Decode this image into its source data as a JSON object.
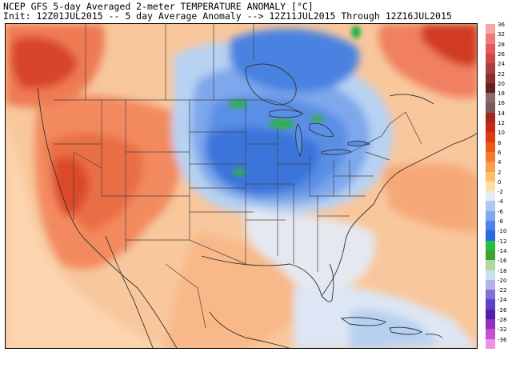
{
  "header": {
    "line1": "NCEP GFS 5-day Averaged 2-meter TEMPERATURE ANOMALY [°C]",
    "line2": "Init: 12Z01JUL2015 -- 5 day Average Anomaly --> 12Z11JUL2015 Through 12Z16JUL2015"
  },
  "colorbar": {
    "levels": [
      "36",
      "32",
      "28",
      "26",
      "24",
      "22",
      "20",
      "18",
      "16",
      "14",
      "12",
      "10",
      "8",
      "6",
      "4",
      "2",
      "0",
      "-2",
      "-4",
      "-6",
      "-8",
      "-10",
      "-12",
      "-14",
      "-16",
      "-18",
      "-20",
      "-22",
      "-24",
      "-26",
      "-28",
      "-32",
      "-36"
    ],
    "colors": [
      "#f7a6a6",
      "#f07a7a",
      "#e85a5a",
      "#cc4a4a",
      "#a84040",
      "#8a3030",
      "#6a2020",
      "#8a6a6a",
      "#7a5a5a",
      "#a0261e",
      "#c42a14",
      "#e03a10",
      "#f05a18",
      "#f47a30",
      "#f8a050",
      "#fac070",
      "#fde0a8",
      "#eaeaf4",
      "#b0c8f0",
      "#80a8ee",
      "#5080e8",
      "#2a6ae0",
      "#28c040",
      "#40a030",
      "#b0d8a0",
      "#c8e0f0",
      "#b8b0e8",
      "#8070d8",
      "#6040c8",
      "#5020a8",
      "#9030c0",
      "#c850d0",
      "#f090e8"
    ]
  },
  "map": {
    "region": "North America",
    "legend_colors": {
      "warm_strong": "#d23a1a",
      "warm": "#f3855a",
      "warm_light": "#f9b98a",
      "neutral": "#e6e8f0",
      "cool_light": "#b7d2f2",
      "cool": "#5b93e6",
      "cool_strong": "#2d6ad8",
      "cold_extreme": "#28b043",
      "ocean_warm": "#f8c79c",
      "ocean_neutral": "#d8e6f6"
    }
  }
}
